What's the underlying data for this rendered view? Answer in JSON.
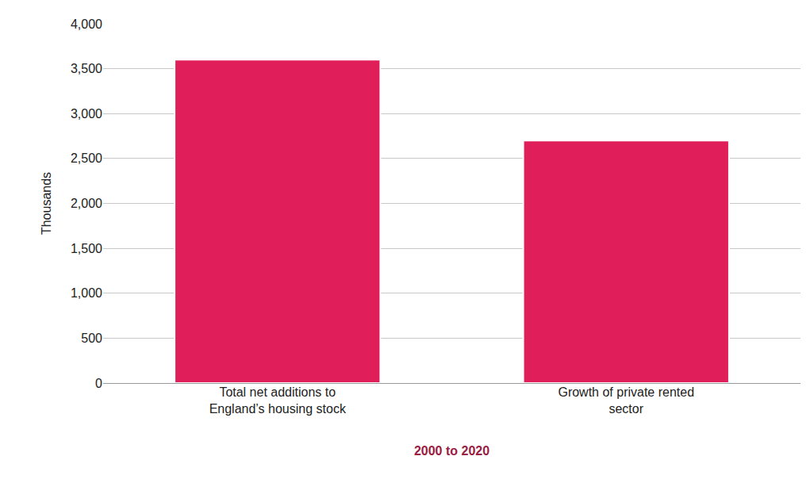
{
  "chart_data": {
    "type": "bar",
    "x_label": "2000 to 2020",
    "y_label": "Thousands",
    "categories": [
      "Total net additions to England’s housing stock",
      "Growth of private rented sector"
    ],
    "values": [
      3600,
      2700
    ],
    "color": "#e01e5a",
    "ylim": [
      0,
      4000
    ],
    "yticks": [
      0,
      500,
      {
        "value": 1000,
        "label": "1,000"
      },
      {
        "value": 1500,
        "label": "1,500"
      },
      {
        "value": 2000,
        "label": "2,000"
      },
      {
        "value": 2500,
        "label": "2,500"
      },
      {
        "value": 3000,
        "label": "3,000"
      },
      {
        "value": 3500,
        "label": "3,500"
      },
      {
        "value": 4000,
        "label": "4,000"
      }
    ],
    "grid": true
  }
}
